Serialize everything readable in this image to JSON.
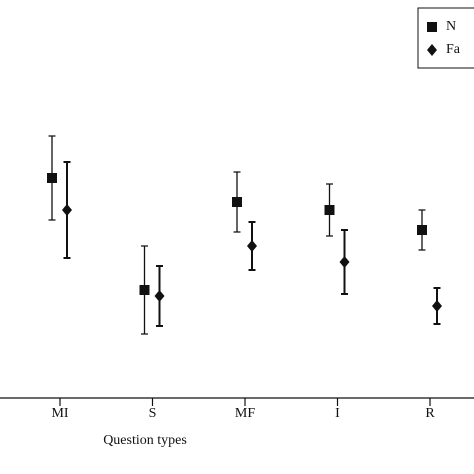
{
  "chart_data": {
    "type": "errorbar",
    "x_label": "Question types",
    "categories": [
      "MI",
      "S",
      "MF",
      "I",
      "R"
    ],
    "ylim": [
      0,
      100
    ],
    "series": [
      {
        "name": "N",
        "color": "#111111",
        "marker": "square",
        "values": [
          55,
          27,
          49,
          47,
          42
        ],
        "errors": [
          10.5,
          11,
          7.5,
          6.5,
          5
        ]
      },
      {
        "name": "Fa",
        "color": "#111111",
        "marker": "diamond",
        "values": [
          47,
          25.5,
          38,
          34,
          23
        ],
        "errors": [
          12,
          7.5,
          6,
          8,
          4.5
        ]
      }
    ],
    "legend": "upper right"
  }
}
